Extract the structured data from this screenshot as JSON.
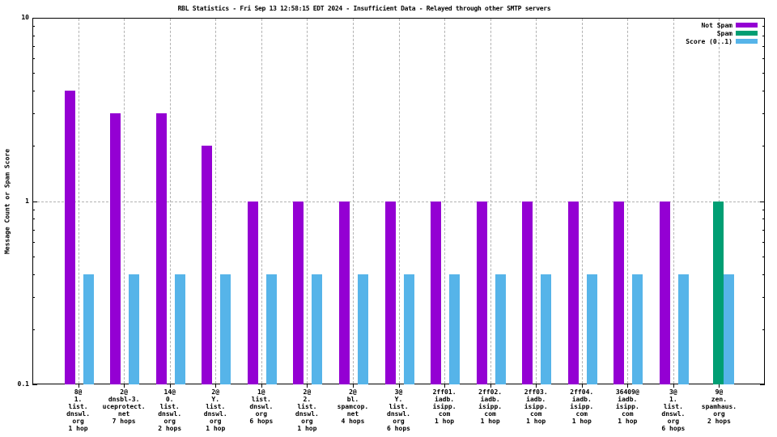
{
  "chart_data": {
    "type": "bar",
    "title": "RBL Statistics - Fri Sep 13 12:58:15 EDT 2024 - Insufficient Data - Relayed through other SMTP servers",
    "ylabel": "Message Count or Spam Score",
    "xlabel": "",
    "y_scale": "log",
    "ylim": [
      0.1,
      10
    ],
    "y_major_ticks": [
      0.1,
      1,
      10
    ],
    "y_tick_labels": [
      "0.1",
      "1",
      "10"
    ],
    "horizontal_gridline_at": 1,
    "grid": "vertical dashed gridline at each category center, horizontal dashed gridline at y=1",
    "legend_position": "top-right-inside",
    "colors": {
      "not_spam": "#9400D3",
      "spam": "#009E73",
      "score": "#56B4E9",
      "grid": "#b3b3b3",
      "axis": "#000000",
      "background": "#ffffff"
    },
    "categories": [
      [
        "8@",
        "1.",
        "list.",
        "dnswl.",
        "org",
        "1 hop"
      ],
      [
        "2@",
        "dnsbl-3.",
        "uceprotect.",
        "net",
        "7 hops"
      ],
      [
        "14@",
        "0.",
        "list.",
        "dnswl.",
        "org",
        "2 hops"
      ],
      [
        "2@",
        "Y.",
        "list.",
        "dnswl.",
        "org",
        "1 hop"
      ],
      [
        "1@",
        "list.",
        "dnswl.",
        "org",
        "6 hops"
      ],
      [
        "2@",
        "2.",
        "list.",
        "dnswl.",
        "org",
        "1 hop"
      ],
      [
        "2@",
        "bl.",
        "spamcop.",
        "net",
        "4 hops"
      ],
      [
        "3@",
        "Y.",
        "list.",
        "dnswl.",
        "org",
        "6 hops"
      ],
      [
        "2ff01.",
        "iadb.",
        "isipp.",
        "com",
        "1 hop"
      ],
      [
        "2ff02.",
        "iadb.",
        "isipp.",
        "com",
        "1 hop"
      ],
      [
        "2ff03.",
        "iadb.",
        "isipp.",
        "com",
        "1 hop"
      ],
      [
        "2ff04.",
        "iadb.",
        "isipp.",
        "com",
        "1 hop"
      ],
      [
        "36409@",
        "iadb.",
        "isipp.",
        "com",
        "1 hop"
      ],
      [
        "3@",
        "1.",
        "list.",
        "dnswl.",
        "org",
        "6 hops"
      ],
      [
        "9@",
        "zen.",
        "spamhaus.",
        "org",
        "2 hops"
      ]
    ],
    "series": [
      {
        "name": "Not Spam",
        "color": "#9400D3",
        "values": [
          4,
          3,
          3,
          2,
          1,
          1,
          1,
          1,
          1,
          1,
          1,
          1,
          1,
          1,
          0
        ]
      },
      {
        "name": "Spam",
        "color": "#009E73",
        "values": [
          0,
          0,
          0,
          0,
          0,
          0,
          0,
          0,
          0,
          0,
          0,
          0,
          0,
          0,
          1
        ]
      },
      {
        "name": "Score (0..1)",
        "color": "#56B4E9",
        "values": [
          0.4,
          0.4,
          0.4,
          0.4,
          0.4,
          0.4,
          0.4,
          0.4,
          0.4,
          0.4,
          0.4,
          0.4,
          0.4,
          0.4,
          0.4
        ]
      }
    ]
  }
}
